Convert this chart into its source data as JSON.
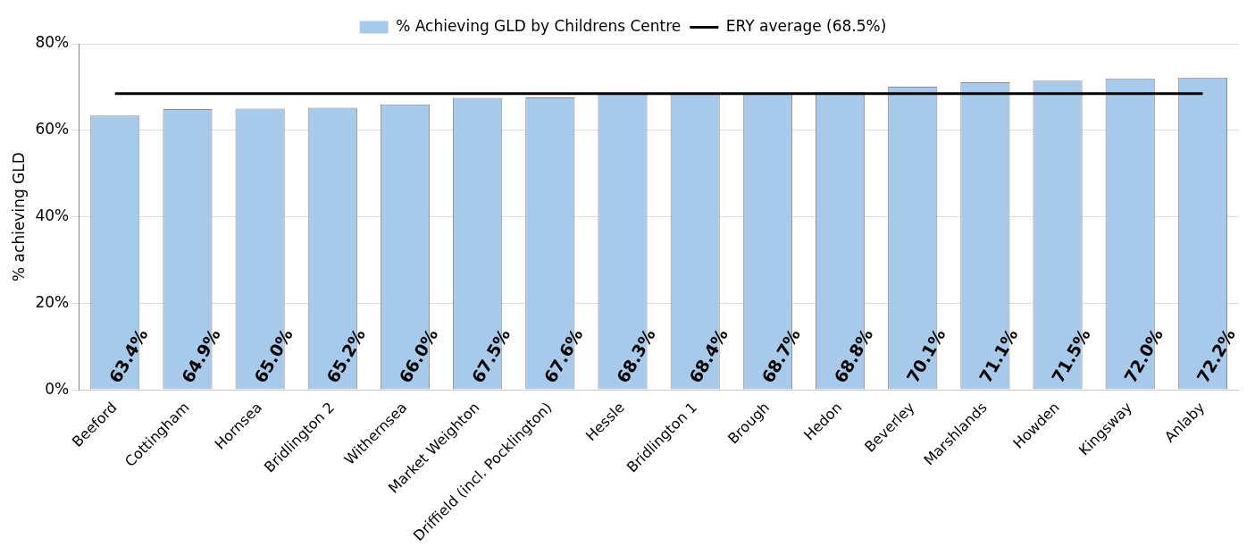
{
  "chart_data": {
    "type": "bar",
    "ylabel": "% achieving GLD",
    "categories": [
      "Beeford",
      "Cottingham",
      "Hornsea",
      "Bridlington 2",
      "Withernsea",
      "Market Weighton",
      "Driffield (incl. Pocklington)",
      "Hessle",
      "Bridlington 1",
      "Brough",
      "Hedon",
      "Beverley",
      "Marshlands",
      "Howden",
      "Kingsway",
      "Anlaby"
    ],
    "series": [
      {
        "name": "% Achieving GLD by Childrens Centre",
        "color": "#a7c9ea",
        "values": [
          63.4,
          64.9,
          65.0,
          65.2,
          66.0,
          67.5,
          67.6,
          68.3,
          68.4,
          68.7,
          68.8,
          70.1,
          71.1,
          71.5,
          72.0,
          72.2
        ],
        "value_labels": [
          "63.4%",
          "64.9%",
          "65.0%",
          "65.2%",
          "66.0%",
          "67.5%",
          "67.6%",
          "68.3%",
          "68.4%",
          "68.7%",
          "68.8%",
          "70.1%",
          "71.1%",
          "71.5%",
          "72.0%",
          "72.2%"
        ]
      },
      {
        "name": "ERY average (68.5%)",
        "type": "line",
        "color": "#000000",
        "values": [
          68.5,
          68.5,
          68.5,
          68.5,
          68.5,
          68.5,
          68.5,
          68.5,
          68.5,
          68.5,
          68.5,
          68.5,
          68.5,
          68.5,
          68.5,
          68.5
        ]
      }
    ],
    "ylim": [
      0,
      80
    ],
    "yticks": [
      {
        "value": 0,
        "label": "0%"
      },
      {
        "value": 20,
        "label": "20%"
      },
      {
        "value": 40,
        "label": "40%"
      },
      {
        "value": 60,
        "label": "60%"
      },
      {
        "value": 80,
        "label": "80%"
      }
    ],
    "grid": "y",
    "legend": "top",
    "marker": "none"
  }
}
